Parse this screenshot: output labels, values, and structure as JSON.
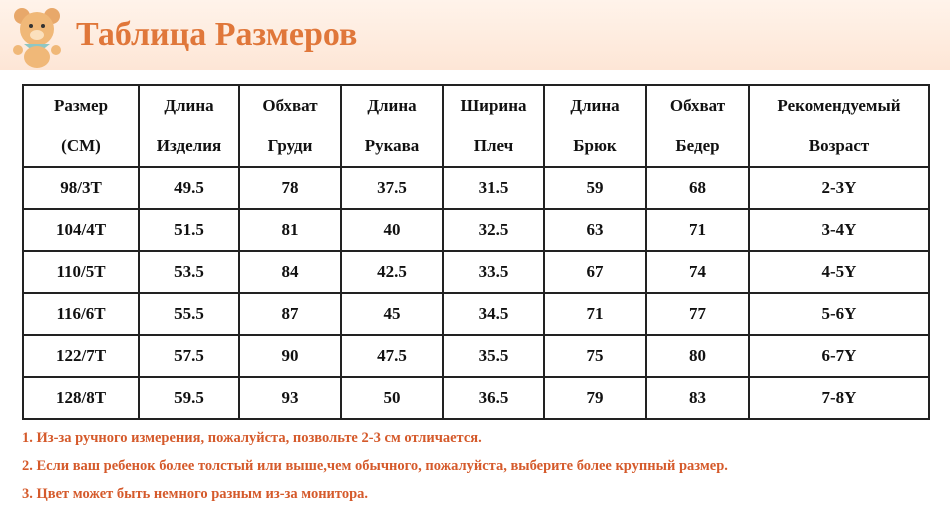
{
  "header": {
    "title": "Таблица Размеров"
  },
  "table": {
    "columns": [
      [
        "Размер",
        "(CM)"
      ],
      [
        "Длина",
        "Изделия"
      ],
      [
        "Обхват",
        "Груди"
      ],
      [
        "Длина",
        "Рукава"
      ],
      [
        "Ширина",
        "Плеч"
      ],
      [
        "Длина",
        "Брюк"
      ],
      [
        "Обхват",
        "Бедер"
      ],
      [
        "Рекомендуемый",
        "Возраст"
      ]
    ],
    "rows": [
      [
        "98/3T",
        "49.5",
        "78",
        "37.5",
        "31.5",
        "59",
        "68",
        "2-3Y"
      ],
      [
        "104/4T",
        "51.5",
        "81",
        "40",
        "32.5",
        "63",
        "71",
        "3-4Y"
      ],
      [
        "110/5T",
        "53.5",
        "84",
        "42.5",
        "33.5",
        "67",
        "74",
        "4-5Y"
      ],
      [
        "116/6T",
        "55.5",
        "87",
        "45",
        "34.5",
        "71",
        "77",
        "5-6Y"
      ],
      [
        "122/7T",
        "57.5",
        "90",
        "47.5",
        "35.5",
        "75",
        "80",
        "6-7Y"
      ],
      [
        "128/8T",
        "59.5",
        "93",
        "50",
        "36.5",
        "79",
        "83",
        "7-8Y"
      ]
    ]
  },
  "notes": [
    "1. Из-за ручного измерения, пожалуйста, позвольте 2-3 см отличается.",
    "2. Если ваш ребенок более толстый или выше,чем обычного, пожалуйста, выберите более крупный размер.",
    "3. Цвет может быть немного разным из-за монитора."
  ]
}
